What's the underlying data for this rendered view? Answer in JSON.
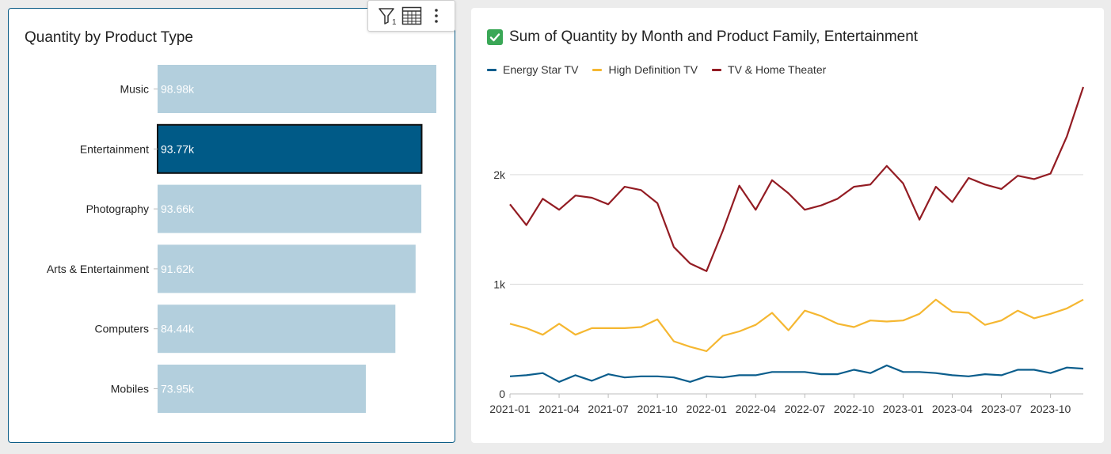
{
  "left_chart": {
    "title": "Quantity by Product Type",
    "toolbar": {
      "filter_icon": "filter-icon",
      "filter_count": "1",
      "table_icon": "table-icon",
      "menu_icon": "more-vert-icon"
    },
    "colors": {
      "bar": "#b3cfdd",
      "bar_selected": "#005a87",
      "selected_border": "#111111",
      "label": "#ffffff"
    }
  },
  "right_chart": {
    "title": "Sum of Quantity by Month and Product Family, Entertainment",
    "status_icon": "check-mark-icon",
    "colors": {
      "Energy Star TV": "#0a5d8c",
      "High Definition TV": "#f5b731",
      "TV & Home Theater": "#931c23"
    }
  },
  "chart_data": [
    {
      "type": "bar",
      "orientation": "horizontal",
      "title": "Quantity by Product Type",
      "categories": [
        "Music",
        "Entertainment",
        "Photography",
        "Arts & Entertainment",
        "Computers",
        "Mobiles"
      ],
      "values": [
        98980,
        93770,
        93660,
        91620,
        84440,
        73950
      ],
      "data_labels": [
        "98.98k",
        "93.77k",
        "93.66k",
        "91.62k",
        "84.44k",
        "73.95k"
      ],
      "selected": "Entertainment",
      "xlim": [
        0,
        98980
      ]
    },
    {
      "type": "line",
      "title": "Sum of Quantity by Month and Product Family, Entertainment",
      "x": [
        "2021-01",
        "2021-02",
        "2021-03",
        "2021-04",
        "2021-05",
        "2021-06",
        "2021-07",
        "2021-08",
        "2021-09",
        "2021-10",
        "2021-11",
        "2021-12",
        "2022-01",
        "2022-02",
        "2022-03",
        "2022-04",
        "2022-05",
        "2022-06",
        "2022-07",
        "2022-08",
        "2022-09",
        "2022-10",
        "2022-11",
        "2022-12",
        "2023-01",
        "2023-02",
        "2023-03",
        "2023-04",
        "2023-05",
        "2023-06",
        "2023-07",
        "2023-08",
        "2023-09",
        "2023-10",
        "2023-11",
        "2023-12"
      ],
      "x_ticks": [
        "2021-01",
        "2021-04",
        "2021-07",
        "2021-10",
        "2022-01",
        "2022-04",
        "2022-07",
        "2022-10",
        "2023-01",
        "2023-04",
        "2023-07",
        "2023-10"
      ],
      "y_ticks": [
        0,
        1000,
        2000
      ],
      "y_tick_labels": [
        "0",
        "1k",
        "2k"
      ],
      "ylim": [
        0,
        2800
      ],
      "grid": true,
      "legend": "top-left",
      "series": [
        {
          "name": "Energy Star TV",
          "values": [
            160,
            170,
            190,
            110,
            170,
            120,
            180,
            150,
            160,
            160,
            150,
            110,
            160,
            150,
            170,
            170,
            200,
            200,
            200,
            180,
            180,
            220,
            190,
            260,
            200,
            200,
            190,
            170,
            160,
            180,
            170,
            220,
            220,
            190,
            240,
            230
          ]
        },
        {
          "name": "High Definition TV",
          "values": [
            640,
            600,
            540,
            640,
            540,
            600,
            600,
            600,
            610,
            680,
            480,
            430,
            390,
            530,
            570,
            630,
            740,
            580,
            760,
            710,
            640,
            610,
            670,
            660,
            670,
            730,
            860,
            750,
            740,
            630,
            670,
            760,
            690,
            730,
            780,
            860
          ]
        },
        {
          "name": "TV & Home Theater",
          "values": [
            1730,
            1540,
            1780,
            1680,
            1810,
            1790,
            1730,
            1890,
            1860,
            1740,
            1340,
            1190,
            1120,
            1490,
            1900,
            1680,
            1950,
            1830,
            1680,
            1720,
            1780,
            1890,
            1910,
            2080,
            1920,
            1590,
            1890,
            1750,
            1970,
            1910,
            1870,
            1990,
            1960,
            2010,
            2350,
            2800
          ]
        }
      ]
    }
  ]
}
